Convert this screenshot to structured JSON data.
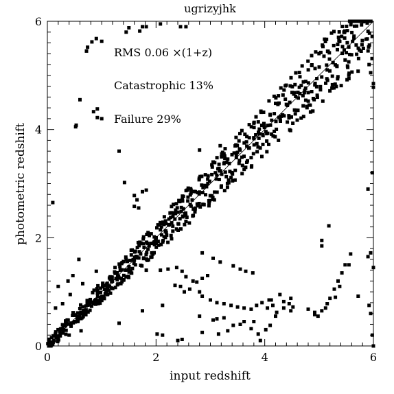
{
  "chart_data": {
    "type": "scatter",
    "title": "ugrizyjhk",
    "xlabel": "input redshift",
    "ylabel": "photometric redshift",
    "xlim": [
      0,
      6
    ],
    "ylim": [
      0,
      6
    ],
    "xticks": [
      0,
      2,
      4,
      6
    ],
    "yticks": [
      0,
      2,
      4,
      6
    ],
    "xtick_labels": [
      "0",
      "2",
      "4",
      "6"
    ],
    "ytick_labels": [
      "0",
      "2",
      "4",
      "6"
    ],
    "grid": false,
    "annotations": [
      "RMS 0.06 ×(1+z)",
      "Catastrophic 13%",
      "Failure 29%"
    ],
    "reference_line": {
      "x": [
        0,
        6
      ],
      "y": [
        0,
        6
      ]
    },
    "points": [
      [
        0.72,
        5.45
      ],
      [
        0.74,
        5.52
      ],
      [
        0.82,
        5.62
      ],
      [
        0.9,
        5.68
      ],
      [
        1.0,
        5.63
      ],
      [
        1.45,
        5.8
      ],
      [
        1.5,
        5.88
      ],
      [
        1.7,
        5.82
      ],
      [
        1.75,
        5.9
      ],
      [
        1.82,
        5.9
      ],
      [
        2.08,
        5.95
      ],
      [
        2.45,
        5.9
      ],
      [
        2.55,
        5.9
      ],
      [
        0.6,
        4.55
      ],
      [
        0.52,
        4.05
      ],
      [
        0.53,
        4.08
      ],
      [
        0.85,
        4.33
      ],
      [
        0.92,
        4.38
      ],
      [
        0.92,
        4.22
      ],
      [
        1.0,
        4.2
      ],
      [
        0.1,
        2.65
      ],
      [
        1.32,
        3.6
      ],
      [
        1.42,
        3.02
      ],
      [
        1.6,
        2.78
      ],
      [
        1.65,
        2.7
      ],
      [
        1.75,
        2.85
      ],
      [
        1.82,
        2.88
      ],
      [
        1.6,
        2.58
      ],
      [
        1.68,
        2.55
      ],
      [
        2.8,
        3.62
      ],
      [
        3.18,
        3.7
      ],
      [
        3.25,
        3.55
      ],
      [
        3.05,
        3.4
      ],
      [
        0.58,
        1.6
      ],
      [
        0.65,
        1.15
      ],
      [
        0.9,
        1.38
      ],
      [
        1.08,
        1.05
      ],
      [
        1.12,
        1.1
      ],
      [
        1.45,
        1.6
      ],
      [
        1.52,
        1.58
      ],
      [
        1.62,
        1.5
      ],
      [
        1.82,
        1.4
      ],
      [
        2.08,
        1.4
      ],
      [
        2.22,
        1.42
      ],
      [
        2.38,
        1.45
      ],
      [
        2.48,
        1.38
      ],
      [
        2.55,
        1.28
      ],
      [
        2.68,
        1.2
      ],
      [
        2.75,
        1.18
      ],
      [
        2.85,
        1.25
      ],
      [
        2.95,
        1.3
      ],
      [
        2.85,
        1.72
      ],
      [
        3.05,
        1.62
      ],
      [
        3.18,
        1.55
      ],
      [
        3.42,
        1.48
      ],
      [
        3.55,
        1.42
      ],
      [
        3.65,
        1.38
      ],
      [
        3.78,
        1.35
      ],
      [
        2.35,
        1.12
      ],
      [
        2.45,
        1.1
      ],
      [
        2.52,
        1.0
      ],
      [
        2.62,
        1.05
      ],
      [
        2.8,
        1.0
      ],
      [
        2.85,
        0.92
      ],
      [
        3.0,
        0.85
      ],
      [
        3.12,
        0.8
      ],
      [
        3.25,
        0.78
      ],
      [
        3.38,
        0.75
      ],
      [
        3.5,
        0.72
      ],
      [
        3.62,
        0.7
      ],
      [
        3.75,
        0.68
      ],
      [
        3.85,
        0.75
      ],
      [
        3.95,
        0.8
      ],
      [
        4.08,
        0.85
      ],
      [
        4.15,
        0.75
      ],
      [
        4.22,
        0.62
      ],
      [
        4.35,
        0.7
      ],
      [
        4.45,
        0.78
      ],
      [
        4.48,
        0.65
      ],
      [
        1.62,
        1.75
      ],
      [
        1.78,
        1.82
      ],
      [
        1.92,
        1.72
      ],
      [
        1.1,
        1.12
      ],
      [
        1.08,
        1.0
      ],
      [
        0.15,
        0.7
      ],
      [
        0.2,
        1.1
      ],
      [
        0.28,
        0.78
      ],
      [
        0.38,
        1.2
      ],
      [
        0.42,
        0.95
      ],
      [
        0.47,
        1.3
      ],
      [
        0.5,
        0.45
      ],
      [
        0.62,
        0.28
      ],
      [
        0.4,
        0.2
      ],
      [
        1.32,
        0.42
      ],
      [
        1.75,
        0.65
      ],
      [
        2.12,
        0.75
      ],
      [
        2.12,
        0.2
      ],
      [
        2.02,
        0.22
      ],
      [
        2.4,
        0.1
      ],
      [
        2.48,
        0.12
      ],
      [
        2.85,
        0.25
      ],
      [
        2.8,
        0.55
      ],
      [
        3.12,
        0.5
      ],
      [
        3.05,
        0.48
      ],
      [
        3.25,
        0.52
      ],
      [
        3.15,
        0.22
      ],
      [
        3.32,
        0.28
      ],
      [
        3.42,
        0.38
      ],
      [
        3.55,
        0.4
      ],
      [
        3.62,
        0.45
      ],
      [
        3.75,
        0.32
      ],
      [
        3.8,
        0.45
      ],
      [
        3.92,
        0.1
      ],
      [
        3.88,
        0.22
      ],
      [
        4.02,
        0.3
      ],
      [
        4.1,
        0.38
      ],
      [
        4.2,
        0.55
      ],
      [
        4.05,
        0.7
      ],
      [
        4.12,
        0.85
      ],
      [
        4.28,
        0.95
      ],
      [
        4.35,
        0.82
      ],
      [
        4.48,
        0.88
      ],
      [
        4.52,
        0.72
      ],
      [
        4.8,
        0.68
      ],
      [
        4.92,
        0.62
      ],
      [
        4.98,
        0.55
      ],
      [
        5.05,
        0.65
      ],
      [
        5.12,
        0.7
      ],
      [
        5.15,
        0.78
      ],
      [
        5.2,
        0.88
      ],
      [
        5.28,
        1.05
      ],
      [
        5.3,
        0.9
      ],
      [
        5.35,
        1.2
      ],
      [
        5.38,
        1.1
      ],
      [
        5.42,
        1.35
      ],
      [
        5.48,
        1.5
      ],
      [
        5.55,
        1.5
      ],
      [
        5.58,
        1.7
      ],
      [
        5.05,
        1.85
      ],
      [
        5.05,
        1.95
      ],
      [
        5.18,
        2.22
      ],
      [
        5.9,
        1.65
      ],
      [
        5.95,
        1.72
      ],
      [
        6.0,
        1.45
      ],
      [
        5.92,
        0.75
      ],
      [
        5.95,
        0.6
      ],
      [
        5.98,
        0.2
      ],
      [
        6.0,
        0.0
      ],
      [
        5.9,
        2.9
      ],
      [
        5.98,
        3.2
      ],
      [
        5.92,
        5.2
      ],
      [
        5.95,
        5.05
      ],
      [
        6.0,
        4.85
      ],
      [
        6.0,
        4.78
      ],
      [
        5.72,
        0.92
      ],
      [
        4.92,
        0.58
      ]
    ]
  }
}
